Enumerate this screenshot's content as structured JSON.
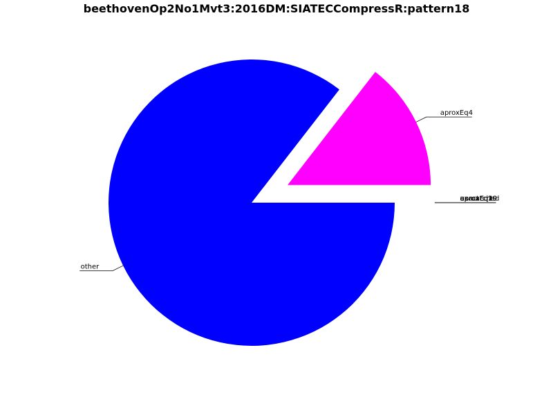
{
  "chart_data": {
    "type": "pie",
    "title": "beethovenOp2No1Mvt3:2016DM:SIATECCompressR:pattern18",
    "slices": [
      {
        "label": "other",
        "value": 85.5,
        "color": "#0000ff",
        "exploded": false
      },
      {
        "label": "aproxEq4",
        "value": 14.5,
        "color": "#ff00ff",
        "exploded": true
      },
      {
        "label": "aproxEq10",
        "value": 0,
        "color": "#ff00ff",
        "exploded": true
      },
      {
        "label": "aproxEq19",
        "value": 0,
        "color": "#ff00ff",
        "exploded": true
      },
      {
        "label": "unmatched",
        "value": 0,
        "color": "#ff00ff",
        "exploded": true
      },
      {
        "label": "aproxEq2",
        "value": 0,
        "color": "#ff00ff",
        "exploded": true
      },
      {
        "label": "aproxEq3",
        "value": 0,
        "color": "#ff00ff",
        "exploded": true
      },
      {
        "label": "exact",
        "value": 0,
        "color": "#ff00ff",
        "exploded": true
      }
    ]
  }
}
